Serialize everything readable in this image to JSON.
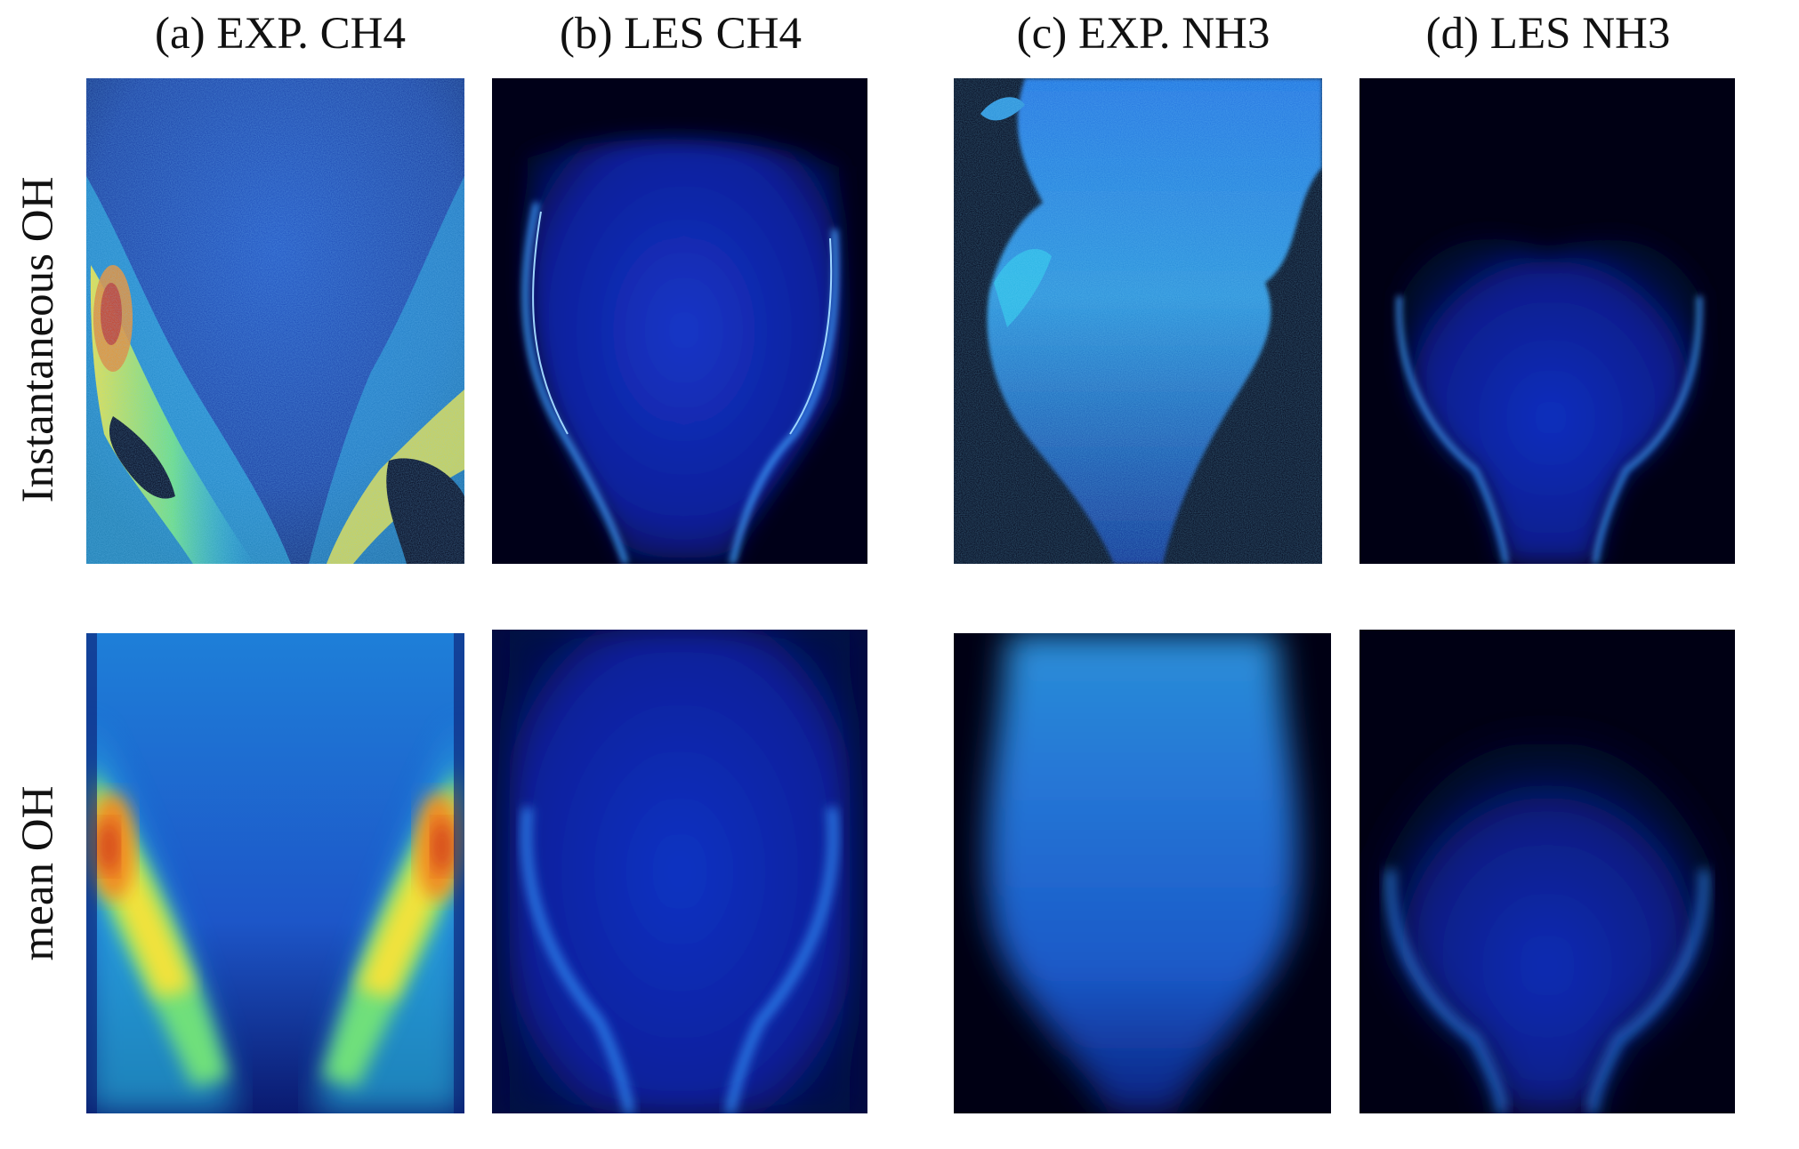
{
  "columns": [
    {
      "id": "a",
      "title": "(a) EXP. CH4"
    },
    {
      "id": "b",
      "title": "(b) LES  CH4"
    },
    {
      "id": "c",
      "title": "(c) EXP.  NH3"
    },
    {
      "id": "d",
      "title": "(d) LES  NH3"
    }
  ],
  "rows": [
    {
      "id": "instantaneous",
      "label": "Instantaneous OH"
    },
    {
      "id": "mean",
      "label": "mean OH"
    }
  ],
  "colormap": {
    "background": "#000014",
    "low": "#0a1aa8",
    "mid": "#1f6fe0",
    "cyan": "#29c6e8",
    "green": "#6fe07a",
    "yellow": "#f2e23a",
    "orange": "#f08a22",
    "high": "#c8261a"
  }
}
